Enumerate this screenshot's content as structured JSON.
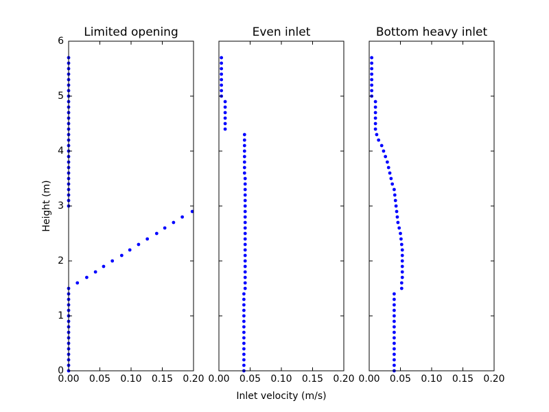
{
  "chart_data": [
    {
      "type": "scatter",
      "title": "Limited opening",
      "ylabel": "Height (m)",
      "color": "#0000ff",
      "xlim": [
        0,
        0.2
      ],
      "ylim": [
        0,
        6
      ],
      "xticks": [
        {
          "value": 0,
          "label": "0.00"
        },
        {
          "value": 0.05,
          "label": "0.05"
        },
        {
          "value": 0.1,
          "label": "0.10"
        },
        {
          "value": 0.15,
          "label": "0.15"
        },
        {
          "value": 0.2,
          "label": "0.20"
        }
      ],
      "yticks": [
        0,
        1,
        2,
        3,
        4,
        5,
        6
      ],
      "x": [
        0,
        0,
        0,
        0,
        0,
        0,
        0,
        0,
        0,
        0,
        0,
        0,
        0,
        0,
        0,
        0,
        0.014,
        0.029,
        0.043,
        0.056,
        0.07,
        0.085,
        0.098,
        0.112,
        0.126,
        0.141,
        0.154,
        0.168,
        0.182,
        0.198,
        0,
        0,
        0,
        0,
        0,
        0,
        0,
        0,
        0,
        0,
        0,
        0,
        0,
        0,
        0,
        0,
        0,
        0,
        0,
        0,
        0,
        0,
        0,
        0,
        0,
        0,
        0,
        0
      ],
      "y": [
        0,
        0.1,
        0.2,
        0.3,
        0.4,
        0.5,
        0.6,
        0.7,
        0.8,
        0.9,
        1,
        1.1,
        1.2,
        1.3,
        1.4,
        1.5,
        1.6,
        1.7,
        1.8,
        1.9,
        2,
        2.1,
        2.2,
        2.3,
        2.4,
        2.5,
        2.6,
        2.7,
        2.8,
        2.9,
        3,
        3.1,
        3.2,
        3.3,
        3.4,
        3.5,
        3.6,
        3.7,
        3.8,
        3.9,
        4,
        4.1,
        4.2,
        4.3,
        4.4,
        4.5,
        4.6,
        4.7,
        4.8,
        4.9,
        5,
        5.1,
        5.2,
        5.3,
        5.4,
        5.5,
        5.6,
        5.7
      ]
    },
    {
      "type": "scatter",
      "title": "Even inlet",
      "xlabel": "Inlet velocity (m/s)",
      "color": "#0000ff",
      "sharey": true,
      "xlim": [
        0,
        0.2
      ],
      "ylim": [
        0,
        6
      ],
      "xticks": [
        {
          "value": 0,
          "label": "0.00"
        },
        {
          "value": 0.05,
          "label": "0.05"
        },
        {
          "value": 0.1,
          "label": "0.10"
        },
        {
          "value": 0.15,
          "label": "0.15"
        },
        {
          "value": 0.2,
          "label": "0.20"
        }
      ],
      "yticks": [
        0,
        1,
        2,
        3,
        4,
        5,
        6
      ],
      "x": [
        0.04,
        0.04,
        0.04,
        0.04,
        0.04,
        0.04,
        0.04,
        0.04,
        0.04,
        0.04,
        0.04,
        0.04,
        0.04,
        0.04,
        0.04,
        0.042,
        0.042,
        0.042,
        0.042,
        0.042,
        0.042,
        0.042,
        0.042,
        0.042,
        0.042,
        0.042,
        0.042,
        0.042,
        0.042,
        0.042,
        0.042,
        0.042,
        0.042,
        0.042,
        0.042,
        0.042,
        0.041,
        0.041,
        0.041,
        0.041,
        0.041,
        0.041,
        0.041,
        0.041,
        0.01,
        0.01,
        0.01,
        0.01,
        0.01,
        0.01,
        0.004,
        0.004,
        0.004,
        0.004,
        0.004,
        0.004,
        0.004,
        0.004
      ],
      "y": [
        0,
        0.1,
        0.2,
        0.3,
        0.4,
        0.5,
        0.6,
        0.7,
        0.8,
        0.9,
        1,
        1.1,
        1.2,
        1.3,
        1.4,
        1.5,
        1.6,
        1.7,
        1.8,
        1.9,
        2,
        2.1,
        2.2,
        2.3,
        2.4,
        2.5,
        2.6,
        2.7,
        2.8,
        2.9,
        3,
        3.1,
        3.2,
        3.3,
        3.4,
        3.5,
        3.6,
        3.7,
        3.8,
        3.9,
        4,
        4.1,
        4.2,
        4.3,
        4.4,
        4.5,
        4.6,
        4.7,
        4.8,
        4.9,
        5,
        5.1,
        5.2,
        5.3,
        5.4,
        5.5,
        5.6,
        5.7
      ]
    },
    {
      "type": "scatter",
      "title": "Bottom heavy inlet",
      "color": "#0000ff",
      "sharey": true,
      "xlim": [
        0,
        0.2
      ],
      "ylim": [
        0,
        6
      ],
      "xticks": [
        {
          "value": 0,
          "label": "0.00"
        },
        {
          "value": 0.05,
          "label": "0.05"
        },
        {
          "value": 0.1,
          "label": "0.10"
        },
        {
          "value": 0.15,
          "label": "0.15"
        },
        {
          "value": 0.2,
          "label": "0.20"
        }
      ],
      "yticks": [
        0,
        1,
        2,
        3,
        4,
        5,
        6
      ],
      "x": [
        0.04,
        0.04,
        0.04,
        0.04,
        0.04,
        0.04,
        0.04,
        0.04,
        0.04,
        0.04,
        0.04,
        0.04,
        0.04,
        0.04,
        0.04,
        0.052,
        0.052,
        0.053,
        0.053,
        0.053,
        0.053,
        0.053,
        0.053,
        0.052,
        0.051,
        0.05,
        0.048,
        0.046,
        0.045,
        0.044,
        0.043,
        0.042,
        0.041,
        0.04,
        0.037,
        0.035,
        0.033,
        0.031,
        0.029,
        0.026,
        0.023,
        0.02,
        0.015,
        0.012,
        0.01,
        0.01,
        0.01,
        0.01,
        0.01,
        0.01,
        0.004,
        0.004,
        0.004,
        0.004,
        0.004,
        0.004,
        0.004,
        0.004
      ],
      "y": [
        0,
        0.1,
        0.2,
        0.3,
        0.4,
        0.5,
        0.6,
        0.7,
        0.8,
        0.9,
        1,
        1.1,
        1.2,
        1.3,
        1.4,
        1.5,
        1.6,
        1.7,
        1.8,
        1.9,
        2,
        2.1,
        2.2,
        2.3,
        2.4,
        2.5,
        2.6,
        2.7,
        2.8,
        2.9,
        3,
        3.1,
        3.2,
        3.3,
        3.4,
        3.5,
        3.6,
        3.7,
        3.8,
        3.9,
        4,
        4.1,
        4.2,
        4.3,
        4.4,
        4.5,
        4.6,
        4.7,
        4.8,
        4.9,
        5,
        5.1,
        5.2,
        5.3,
        5.4,
        5.5,
        5.6,
        5.7
      ]
    }
  ]
}
